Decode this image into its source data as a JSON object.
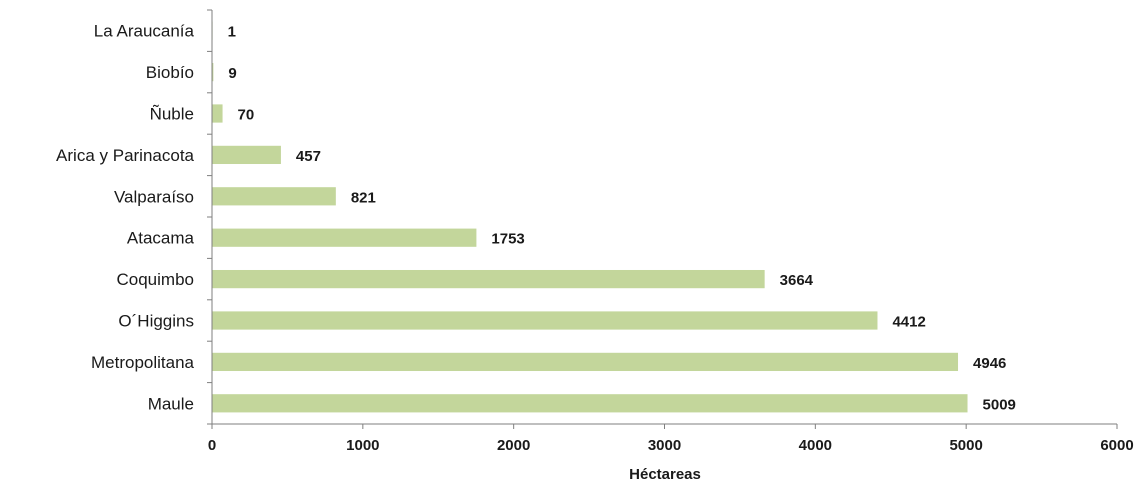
{
  "chart_data": {
    "type": "bar",
    "orientation": "horizontal",
    "categories": [
      "La Araucanía",
      "Biobío",
      "Ñuble",
      "Arica y Parinacota",
      "Valparaíso",
      "Atacama",
      "Coquimbo",
      "O´Higgins",
      "Metropolitana",
      "Maule"
    ],
    "values": [
      1,
      9,
      70,
      457,
      821,
      1753,
      3664,
      4412,
      4946,
      5009
    ],
    "xlabel": "Héctareas",
    "ylabel": "",
    "xlim": [
      0,
      6000
    ],
    "xticks": [
      0,
      1000,
      2000,
      3000,
      4000,
      5000,
      6000
    ],
    "grid": false,
    "legend": "none",
    "colors": {
      "bar": "#c3d69b",
      "axis": "#7f7f7f",
      "text": "#1a1a1a"
    }
  }
}
